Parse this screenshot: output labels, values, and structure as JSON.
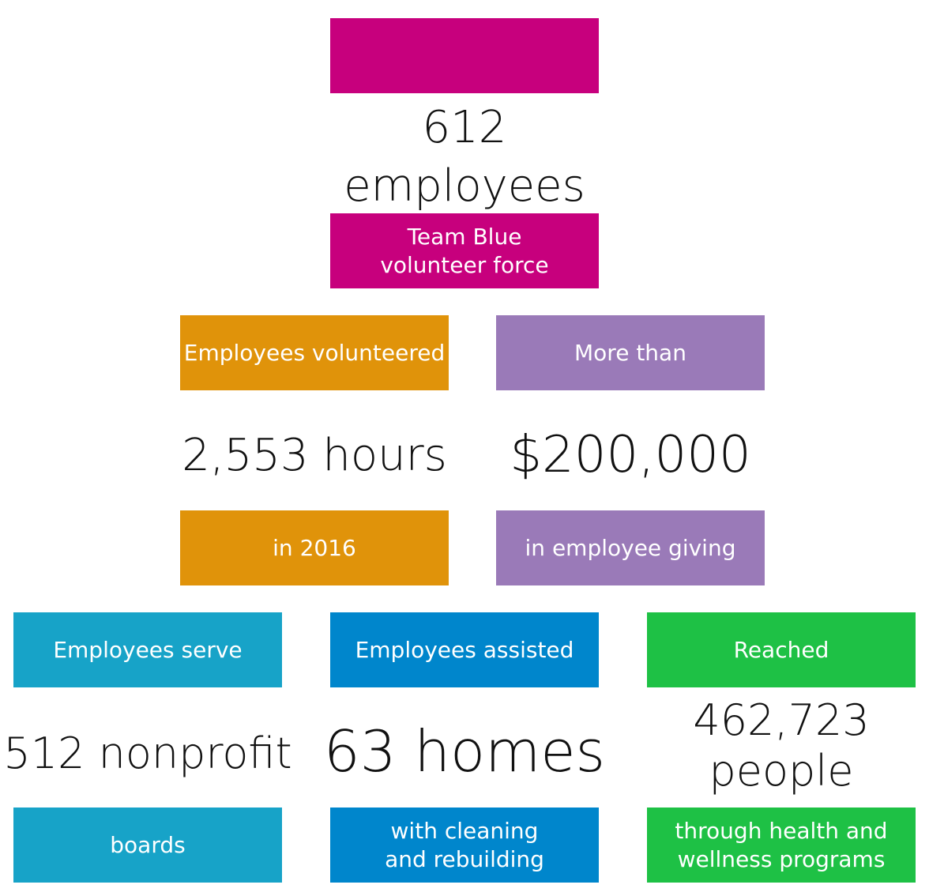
{
  "colors": {
    "magenta": "#c7007d",
    "orange": "#e0930a",
    "purple": "#9a7ab8",
    "teal": "#17a3c8",
    "blue": "#0086cc",
    "green": "#1ec145"
  },
  "team": {
    "count_number": "612",
    "count_unit": "employees",
    "label_line1": "Team Blue",
    "label_line2": "volunteer force"
  },
  "hours": {
    "top_label": "Employees volunteered",
    "value": "2,553 hours",
    "bottom_label": "in 2016"
  },
  "giving": {
    "top_label": "More than",
    "value": "$200,000",
    "bottom_label": "in employee giving"
  },
  "boards": {
    "top_label": "Employees serve",
    "value": "512 nonprofit",
    "bottom_label": "boards"
  },
  "homes": {
    "top_label": "Employees assisted",
    "value": "63 homes",
    "bottom_line1": "with cleaning",
    "bottom_line2": "and rebuilding"
  },
  "people": {
    "top_label": "Reached",
    "value_line1": "462,723",
    "value_line2": "people",
    "bottom_line1": "through health and",
    "bottom_line2": "wellness programs"
  }
}
